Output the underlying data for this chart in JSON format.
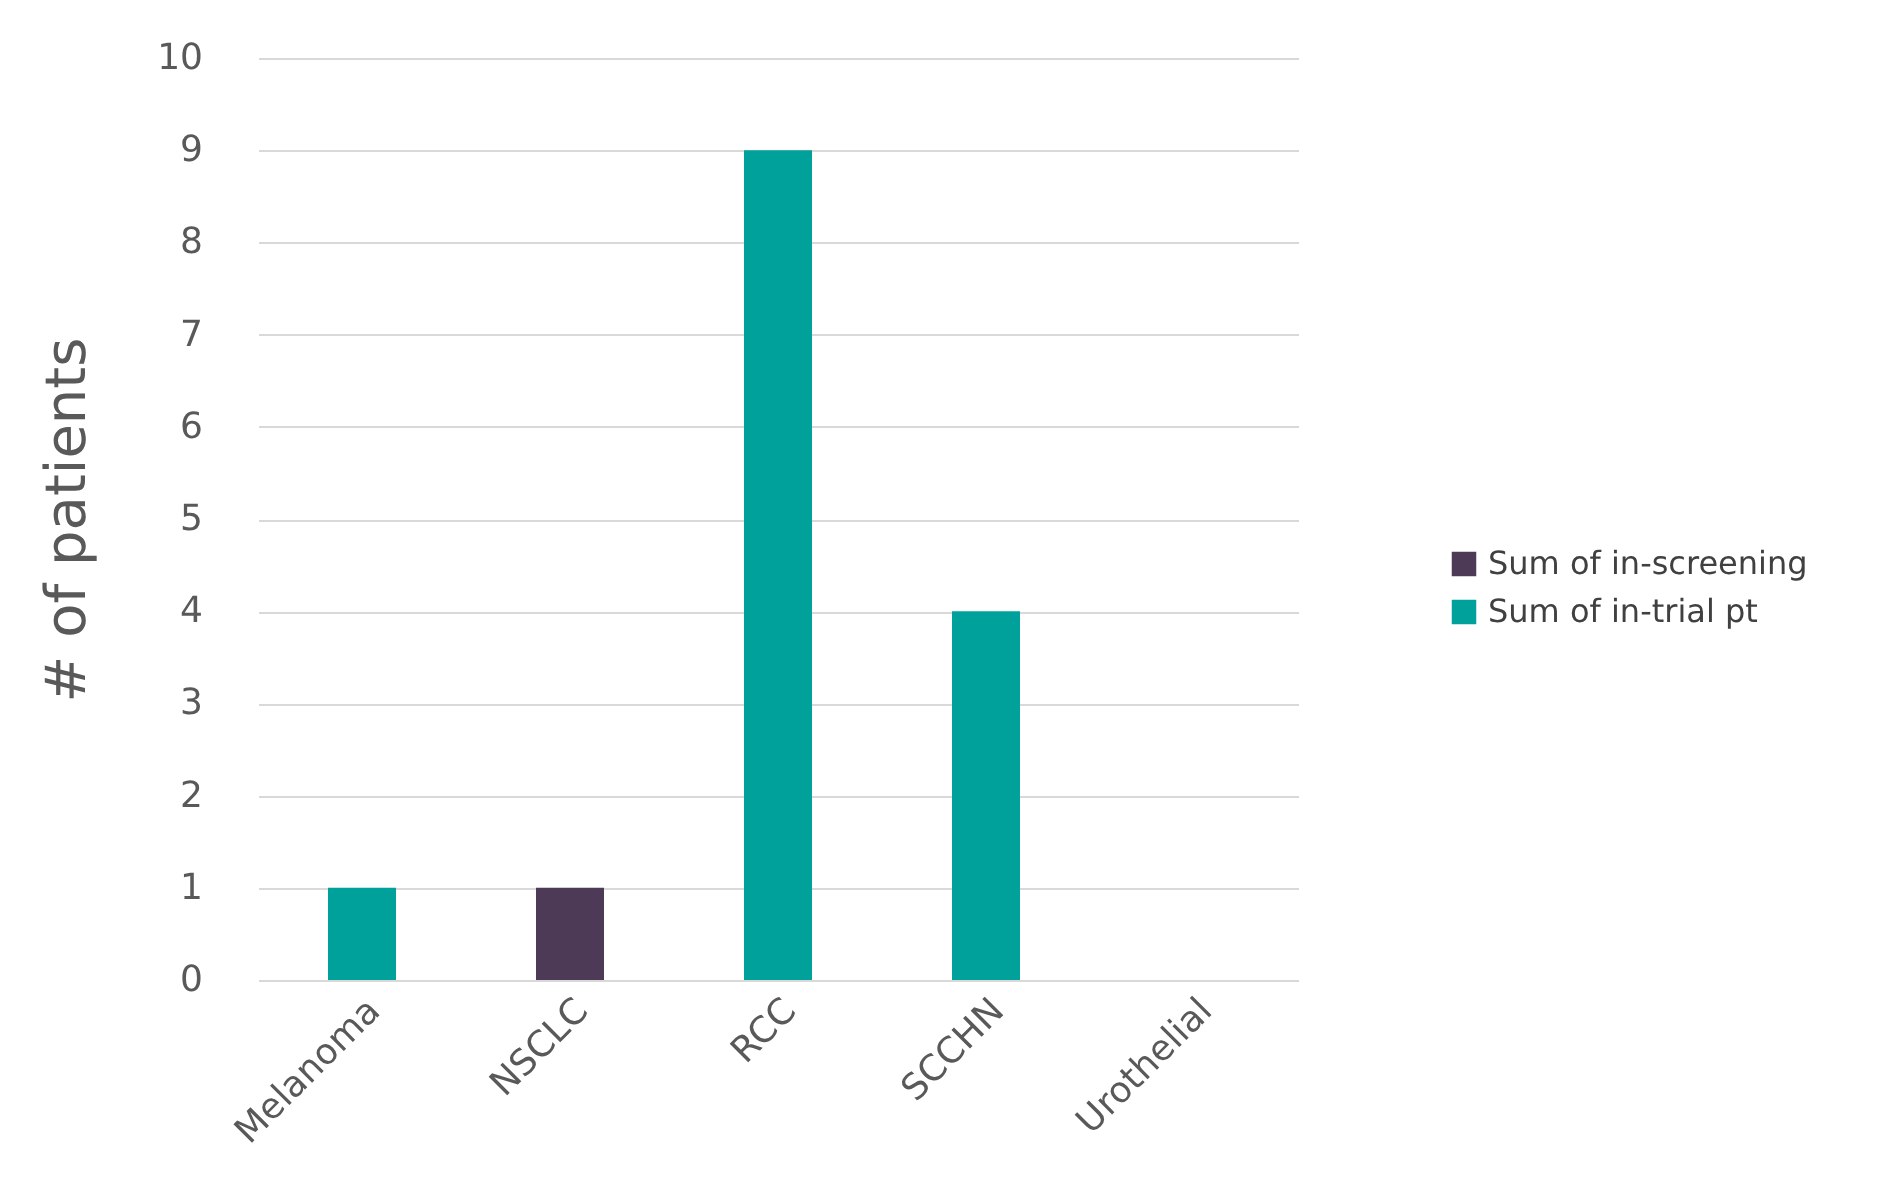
{
  "chart_data": {
    "type": "bar",
    "stacked": true,
    "ylabel": "# of patients",
    "categories": [
      "Melanoma",
      "NSCLC",
      "RCC",
      "SCCHN",
      "Urothelial"
    ],
    "series": [
      {
        "name": "Sum of in-screening",
        "color": "#4d3a57",
        "values": [
          0,
          1,
          0,
          0,
          0
        ]
      },
      {
        "name": "Sum of in-trial pt",
        "color": "#00a19a",
        "values": [
          1,
          0,
          9,
          4,
          0
        ]
      }
    ],
    "ylim": [
      0,
      10
    ],
    "yticks": [
      0,
      1,
      2,
      3,
      4,
      5,
      6,
      7,
      8,
      9,
      10
    ],
    "grid": "y",
    "legend": "right"
  }
}
